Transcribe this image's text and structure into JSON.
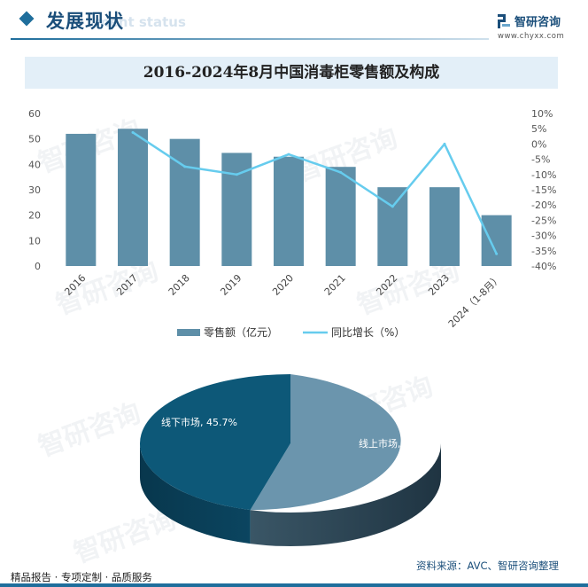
{
  "header": {
    "title": "发展现状",
    "subtitle_ghost": "ment status"
  },
  "brand": {
    "name": "智研咨询",
    "url": "www.chyxx.com"
  },
  "watermark": "智研咨询",
  "chart_title": "2016-2024年8月中国消毒柜零售额及构成",
  "colors": {
    "bar": "#5e8fa8",
    "line": "#66ccee",
    "pie_offline": "#0d5878",
    "pie_online": "#6b95ad",
    "accent": "#1f6e9c",
    "title_bg": "#e3eff8"
  },
  "chart_data": [
    {
      "type": "bar+line",
      "categories": [
        "2016",
        "2017",
        "2018",
        "2019",
        "2020",
        "2021",
        "2022",
        "2023",
        "2024（1-8月）"
      ],
      "series": [
        {
          "name": "零售额（亿元）",
          "type": "bar",
          "axis": "left",
          "values": [
            52,
            54,
            50,
            44.5,
            43,
            39,
            31,
            31,
            20
          ]
        },
        {
          "name": "同比增长（%）",
          "type": "line",
          "axis": "right",
          "values": [
            null,
            3.8,
            -7.4,
            -10,
            -3.4,
            -9.3,
            -20.5,
            0,
            -36
          ]
        }
      ],
      "y_left": {
        "ticks": [
          "0",
          "10",
          "20",
          "30",
          "40",
          "50",
          "60"
        ],
        "range": [
          0,
          60
        ]
      },
      "y_right": {
        "ticks": [
          "10%",
          "5%",
          "0%",
          "-5%",
          "-10%",
          "-15%",
          "-20%",
          "-25%",
          "-30%",
          "-35%",
          "-40%"
        ],
        "range": [
          -40,
          10
        ]
      },
      "grid": false,
      "legend": "bottom"
    },
    {
      "type": "pie",
      "style": "3d",
      "slices": [
        {
          "label": "线上市场",
          "value": 54.3,
          "text": "线上市场, 54.3%"
        },
        {
          "label": "线下市场",
          "value": 45.7,
          "text": "线下市场, 45.7%"
        }
      ]
    }
  ],
  "footer": {
    "left": "精品报告 · 专项定制 · 品质服务",
    "source": "资料来源：AVC、智研咨询整理"
  }
}
